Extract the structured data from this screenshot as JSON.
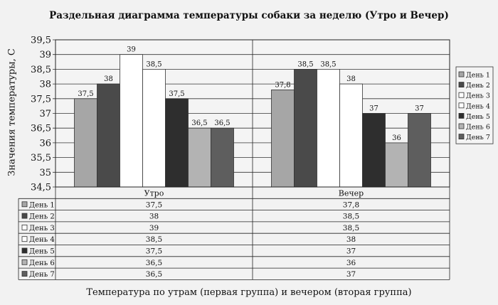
{
  "chart_data": {
    "type": "bar",
    "title": "Раздельная диаграмма температуры собаки за неделю (Утро и Вечер)",
    "xlabel": "Температура по утрам (первая группа) и вечером (вторая группа)",
    "ylabel": "Значения температуры, С",
    "categories": [
      "Утро",
      "Вечер"
    ],
    "ylim": [
      34.5,
      39.5
    ],
    "yticks": [
      "34,5",
      "35",
      "35,5",
      "36",
      "36,5",
      "37",
      "37,5",
      "38",
      "38,5",
      "39",
      "39,5"
    ],
    "grid": true,
    "legend_position": "right",
    "series": [
      {
        "name": "День 1",
        "values": [
          37.5,
          37.8
        ],
        "labels": [
          "37,5",
          "37,8"
        ],
        "color": "#a6a6a6"
      },
      {
        "name": "День 2",
        "values": [
          38,
          38.5
        ],
        "labels": [
          "38",
          "38,5"
        ],
        "color": "#4a4a4a"
      },
      {
        "name": "День 3",
        "values": [
          39,
          38.5
        ],
        "labels": [
          "39",
          "38,5"
        ],
        "color": "#ffffff"
      },
      {
        "name": "День 4",
        "values": [
          38.5,
          38
        ],
        "labels": [
          "38,5",
          "38"
        ],
        "color": "#ffffff"
      },
      {
        "name": "День 5",
        "values": [
          37.5,
          37
        ],
        "labels": [
          "37,5",
          "37"
        ],
        "color": "#2e2e2e"
      },
      {
        "name": "День 6",
        "values": [
          36.5,
          36
        ],
        "labels": [
          "36,5",
          "36"
        ],
        "color": "#b3b3b3"
      },
      {
        "name": "День 7",
        "values": [
          36.5,
          37
        ],
        "labels": [
          "36,5",
          "37"
        ],
        "color": "#5e5e5e"
      }
    ]
  }
}
